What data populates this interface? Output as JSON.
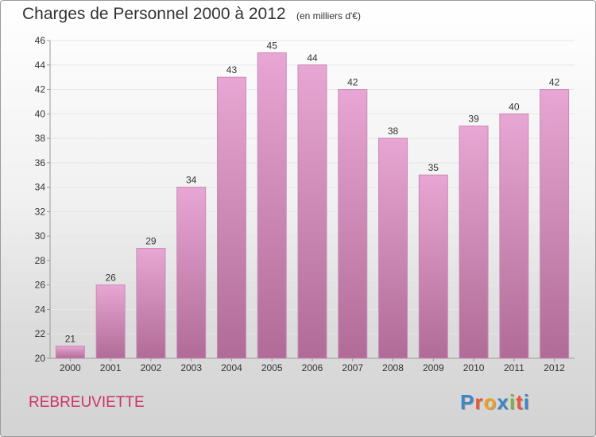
{
  "header": {
    "title": "Charges de Personnel 2000 à 2012",
    "subtitle": "(en milliers d'€)"
  },
  "footer": {
    "commune": "REBREUVIETTE",
    "logo_letters": [
      "P",
      "r",
      "o",
      "x",
      "i",
      "t",
      "i"
    ],
    "logo_colors": [
      "#3a86c8",
      "#e8563a",
      "#f0a020",
      "#3a86c8",
      "#7cb342",
      "#e8563a",
      "#3a86c8"
    ]
  },
  "colors": {
    "bar_top": "#e8a6d4",
    "bar_bottom": "#b06c96",
    "bar_edge": "#c98ab3"
  },
  "chart_data": {
    "type": "bar",
    "categories": [
      "2000",
      "2001",
      "2002",
      "2003",
      "2004",
      "2005",
      "2006",
      "2007",
      "2008",
      "2009",
      "2010",
      "2011",
      "2012"
    ],
    "values": [
      21,
      26,
      29,
      34,
      43,
      45,
      44,
      42,
      38,
      35,
      39,
      40,
      42
    ],
    "title": "Charges de Personnel 2000 à 2012",
    "ylim": [
      20,
      46
    ],
    "yticks": [
      20,
      22,
      24,
      26,
      28,
      30,
      32,
      34,
      36,
      38,
      40,
      42,
      44,
      46
    ],
    "grid": true
  }
}
